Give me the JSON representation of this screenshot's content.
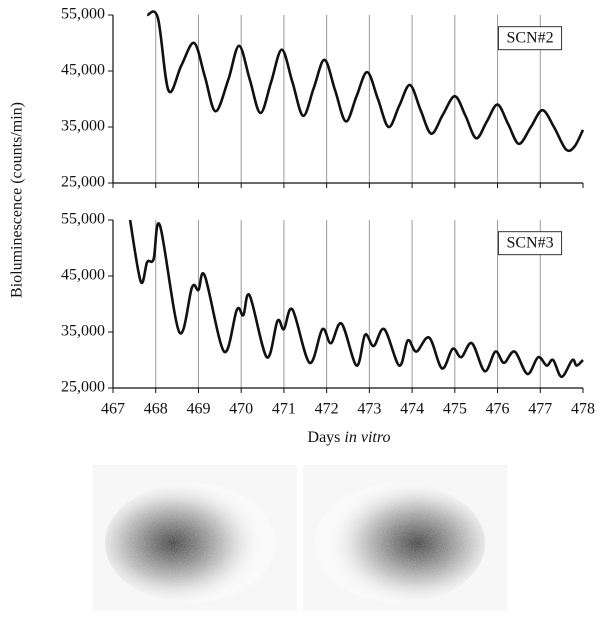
{
  "chart_data": [
    {
      "type": "line",
      "label": "SCN#2",
      "ylabel": "Bioluminescence (counts/min)",
      "xlim": [
        467,
        478
      ],
      "xticks": [
        467,
        468,
        469,
        470,
        471,
        472,
        473,
        474,
        475,
        476,
        477,
        478
      ],
      "show_xticklabels": false,
      "ylim": [
        25000,
        55000
      ],
      "yticks": [
        {
          "value": 25000,
          "label": "25,000"
        },
        {
          "value": 35000,
          "label": "35,000"
        },
        {
          "value": 45000,
          "label": "45,000"
        },
        {
          "value": 55000,
          "label": "55,000"
        }
      ],
      "xgrid": true,
      "series": [
        {
          "color": "#111111",
          "x": [
            467.8,
            468.05,
            468.3,
            468.6,
            468.9,
            469.15,
            469.4,
            469.7,
            469.95,
            470.2,
            470.45,
            470.7,
            470.95,
            471.2,
            471.45,
            471.7,
            471.95,
            472.2,
            472.45,
            472.7,
            472.95,
            473.2,
            473.45,
            473.7,
            473.95,
            474.2,
            474.45,
            474.72,
            475.0,
            475.25,
            475.5,
            475.75,
            476.0,
            476.25,
            476.5,
            476.78,
            477.05,
            477.32,
            477.6,
            477.8,
            478.0
          ],
          "values": [
            55000,
            54500,
            41500,
            46000,
            50000,
            44000,
            37800,
            43500,
            49500,
            43500,
            37500,
            43000,
            48800,
            43000,
            37000,
            42000,
            47000,
            41500,
            36000,
            40500,
            44800,
            40000,
            35000,
            38800,
            42500,
            38000,
            33800,
            37200,
            40500,
            37000,
            33000,
            36000,
            39000,
            35500,
            32000,
            35000,
            38000,
            35000,
            31000,
            31500,
            34500
          ]
        }
      ]
    },
    {
      "type": "line",
      "label": "SCN#3",
      "xlabel": [
        "Days",
        "in vitro"
      ],
      "xlim": [
        467,
        478
      ],
      "xticks": [
        467,
        468,
        469,
        470,
        471,
        472,
        473,
        474,
        475,
        476,
        477,
        478
      ],
      "show_xticklabels": true,
      "ylim": [
        25000,
        55000
      ],
      "yticks": [
        {
          "value": 25000,
          "label": "25,000"
        },
        {
          "value": 35000,
          "label": "35,000"
        },
        {
          "value": 45000,
          "label": "45,000"
        },
        {
          "value": 55000,
          "label": "55,000"
        }
      ],
      "xgrid": true,
      "series": [
        {
          "color": "#111111",
          "x": [
            467.4,
            467.65,
            467.8,
            467.95,
            468.1,
            468.55,
            468.85,
            469.0,
            469.15,
            469.6,
            469.9,
            470.05,
            470.2,
            470.6,
            470.85,
            471.0,
            471.2,
            471.6,
            471.9,
            472.1,
            472.35,
            472.7,
            472.9,
            473.1,
            473.35,
            473.7,
            473.9,
            474.1,
            474.4,
            474.7,
            474.95,
            475.15,
            475.4,
            475.7,
            475.95,
            476.15,
            476.4,
            476.7,
            476.95,
            477.15,
            477.3,
            477.5,
            477.75,
            477.85,
            478.0
          ],
          "values": [
            55000,
            44000,
            47500,
            48000,
            54000,
            35000,
            43000,
            42500,
            45000,
            31500,
            39000,
            38000,
            41500,
            30500,
            37000,
            35500,
            39000,
            29500,
            35500,
            33000,
            36500,
            29000,
            34500,
            32500,
            35500,
            29000,
            33500,
            31500,
            34000,
            28500,
            32000,
            30500,
            33000,
            28000,
            31500,
            29500,
            31500,
            27500,
            30500,
            29000,
            30000,
            27000,
            30000,
            29000,
            30000
          ]
        }
      ]
    }
  ]
}
